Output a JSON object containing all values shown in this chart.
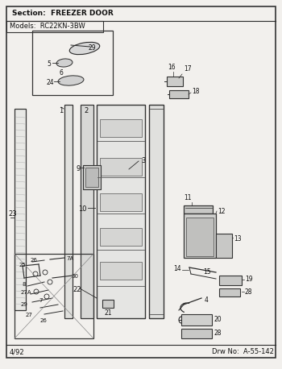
{
  "bg_color": "#f2f0ed",
  "line_color": "#2a2a2a",
  "section_text": "Section:  FREEZER DOOR",
  "models_text": "Models:  RC22KN-3BW",
  "date_text": "4/92",
  "drw_text": "Drw No:  A-55-142"
}
